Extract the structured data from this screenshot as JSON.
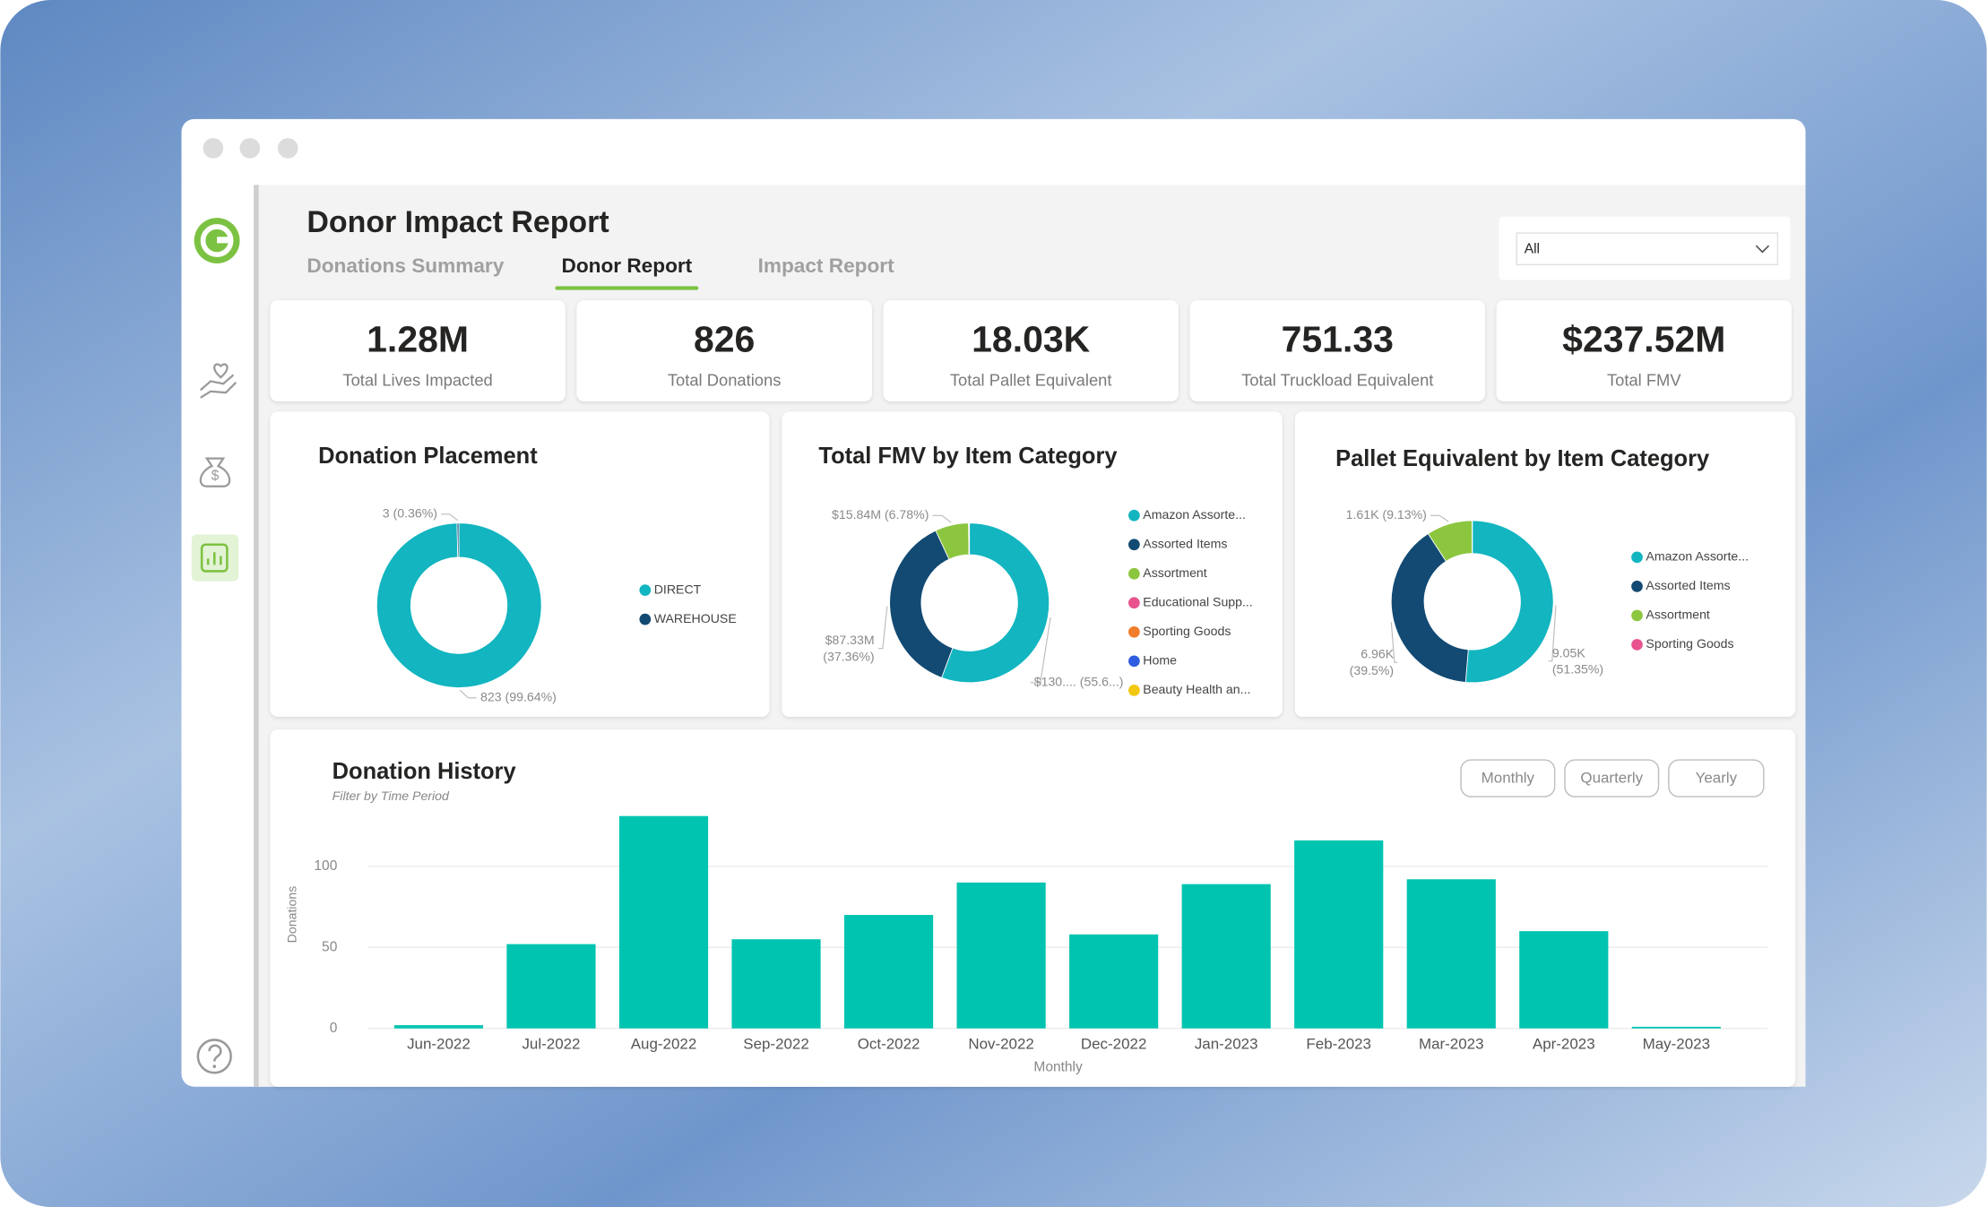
{
  "header": {
    "title": "Donor Impact Report"
  },
  "tabs": [
    {
      "label": "Donations Summary",
      "active": false
    },
    {
      "label": "Donor Report",
      "active": true
    },
    {
      "label": "Impact Report",
      "active": false
    }
  ],
  "filter": {
    "value": "All"
  },
  "kpis": [
    {
      "value": "1.28M",
      "label": "Total Lives Impacted"
    },
    {
      "value": "826",
      "label": "Total Donations"
    },
    {
      "value": "18.03K",
      "label": "Total Pallet Equivalent"
    },
    {
      "value": "751.33",
      "label": "Total Truckload Equivalent"
    },
    {
      "value": "$237.52M",
      "label": "Total FMV"
    }
  ],
  "time_filter": [
    "Monthly",
    "Quarterly",
    "Yearly"
  ],
  "chart_data": [
    {
      "type": "donut",
      "title": "Donation Placement",
      "categories": [
        "DIRECT",
        "WAREHOUSE"
      ],
      "values": [
        823,
        3
      ],
      "value_labels": [
        "823 (99.64%)",
        "3 (0.36%)"
      ],
      "colors": [
        "#12b5c0",
        "#124a73"
      ]
    },
    {
      "type": "donut",
      "title": "Total FMV by Item Category",
      "categories": [
        "Amazon Assorte...",
        "Assorted Items",
        "Assortment",
        "Educational Supp...",
        "Sporting Goods",
        "Home",
        "Beauty Health an..."
      ],
      "values": [
        130.0,
        87.33,
        15.84,
        0.2,
        0.1,
        0.05,
        0.05
      ],
      "value_labels": [
        "$130.... (55.6...)",
        "$87.33M (37.36%)",
        "$15.84M (6.78%)",
        null,
        null,
        null,
        null
      ],
      "colors": [
        "#12b5c0",
        "#124a73",
        "#8cc63f",
        "#e8538f",
        "#f07d2a",
        "#2f5de0",
        "#f2c811"
      ]
    },
    {
      "type": "donut",
      "title": "Pallet Equivalent by Item Category",
      "categories": [
        "Amazon Assorte...",
        "Assorted Items",
        "Assortment",
        "Sporting Goods"
      ],
      "values": [
        9.05,
        6.96,
        1.61,
        0.01
      ],
      "value_labels": [
        "9.05K (51.35%)",
        "6.96K (39.5%)",
        "1.61K (9.13%)",
        null
      ],
      "colors": [
        "#12b5c0",
        "#124a73",
        "#8cc63f",
        "#e8538f"
      ]
    },
    {
      "type": "bar",
      "title": "Donation History",
      "subtitle": "Filter by Time Period",
      "x_label": "Monthly",
      "y_label": "Donations",
      "categories": [
        "Jun-2022",
        "Jul-2022",
        "Aug-2022",
        "Sep-2022",
        "Oct-2022",
        "Nov-2022",
        "Dec-2022",
        "Jan-2023",
        "Feb-2023",
        "Mar-2023",
        "Apr-2023",
        "May-2023"
      ],
      "values": [
        2,
        52,
        131,
        55,
        70,
        90,
        58,
        89,
        116,
        92,
        60,
        1
      ],
      "color": "#00c4b0",
      "ylim": [
        0,
        135
      ],
      "yticks": [
        0,
        50,
        100
      ],
      "grid": true
    }
  ]
}
